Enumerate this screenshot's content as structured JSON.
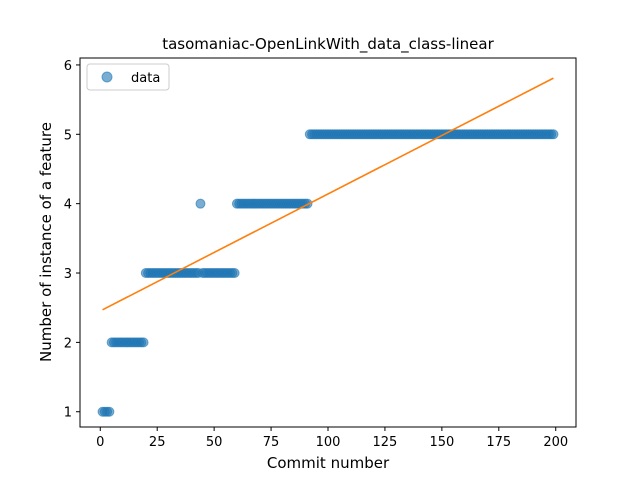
{
  "chart_data": {
    "type": "scatter",
    "title": "tasomaniac-OpenLinkWith_data_class-linear",
    "xlabel": "Commit number",
    "ylabel": "Number of instance of a feature",
    "xlim": [
      -8.9,
      208.9
    ],
    "ylim": [
      0.78,
      6.1
    ],
    "xticks": [
      0,
      25,
      50,
      75,
      100,
      125,
      150,
      175,
      200
    ],
    "yticks": [
      1,
      2,
      3,
      4,
      5,
      6
    ],
    "grid": false,
    "legend": {
      "placement": "top-left",
      "entries": [
        "data"
      ]
    },
    "series": [
      {
        "name": "data",
        "kind": "points",
        "color": "#1f77b4",
        "segments": [
          {
            "x_start": 1,
            "x_end": 4,
            "y": 1
          },
          {
            "x_start": 5,
            "x_end": 19,
            "y": 2
          },
          {
            "x_start": 20,
            "x_end": 43,
            "y": 3
          },
          {
            "x_start": 44,
            "x_end": 44,
            "y": 4
          },
          {
            "x_start": 45,
            "x_end": 59,
            "y": 3
          },
          {
            "x_start": 60,
            "x_end": 91,
            "y": 4
          },
          {
            "x_start": 92,
            "x_end": 199,
            "y": 5
          }
        ]
      },
      {
        "kind": "line",
        "color": "#ff7f0e",
        "x": [
          1,
          199
        ],
        "y": [
          2.47,
          5.81
        ]
      }
    ]
  }
}
